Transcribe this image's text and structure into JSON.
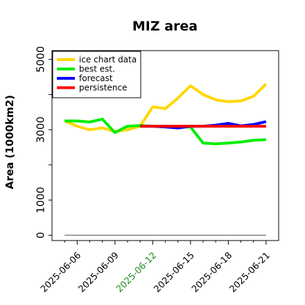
{
  "chart_data": {
    "type": "line",
    "title": "MIZ area",
    "xlabel": "",
    "ylabel": "Area (1000km2)",
    "ylim": [
      -150,
      5250
    ],
    "xlim": [
      "2025-06-04",
      "2025-06-22"
    ],
    "yticks": [
      0,
      1000,
      3000,
      5000
    ],
    "xticks": [
      "2025-06-06",
      "2025-06-09",
      "2025-06-12",
      "2025-06-15",
      "2025-06-18",
      "2025-06-21"
    ],
    "highlighted_xtick": "2025-06-12",
    "highlight_color": "#228B22",
    "legend_position": "upper-left",
    "grid": false,
    "series": [
      {
        "name": "ice chart data",
        "color": "#FFD700",
        "x": [
          "2025-06-05",
          "2025-06-06",
          "2025-06-07",
          "2025-06-08",
          "2025-06-09",
          "2025-06-10",
          "2025-06-11",
          "2025-06-12",
          "2025-06-13",
          "2025-06-14",
          "2025-06-15",
          "2025-06-16",
          "2025-06-17",
          "2025-06-18",
          "2025-06-19",
          "2025-06-20",
          "2025-06-21"
        ],
        "values": [
          3250,
          3100,
          3000,
          3050,
          2950,
          3000,
          3100,
          3650,
          3600,
          3900,
          4250,
          4000,
          3850,
          3800,
          3820,
          3950,
          4300
        ]
      },
      {
        "name": "best est.",
        "color": "#00EE00",
        "x": [
          "2025-06-05",
          "2025-06-06",
          "2025-06-07",
          "2025-06-08",
          "2025-06-09",
          "2025-06-10",
          "2025-06-11",
          "2025-06-12",
          "2025-06-13",
          "2025-06-14",
          "2025-06-15",
          "2025-06-16",
          "2025-06-17",
          "2025-06-18",
          "2025-06-19",
          "2025-06-20",
          "2025-06-21"
        ],
        "values": [
          3250,
          3250,
          3220,
          3300,
          2920,
          3100,
          3120,
          3100,
          3100,
          3080,
          3080,
          2620,
          2600,
          2620,
          2650,
          2700,
          2720
        ]
      },
      {
        "name": "forecast",
        "color": "#0000FF",
        "x": [
          "2025-06-11",
          "2025-06-12",
          "2025-06-13",
          "2025-06-14",
          "2025-06-15",
          "2025-06-16",
          "2025-06-17",
          "2025-06-18",
          "2025-06-19",
          "2025-06-20",
          "2025-06-21"
        ],
        "values": [
          3100,
          3100,
          3080,
          3050,
          3100,
          3100,
          3130,
          3180,
          3110,
          3150,
          3230
        ]
      },
      {
        "name": "persistence",
        "color": "#FF0000",
        "x": [
          "2025-06-11",
          "2025-06-21"
        ],
        "values": [
          3100,
          3100
        ]
      },
      {
        "name": "",
        "color": "#808080",
        "x": [
          "2025-06-05",
          "2025-06-21"
        ],
        "values": [
          0,
          0
        ]
      }
    ]
  }
}
